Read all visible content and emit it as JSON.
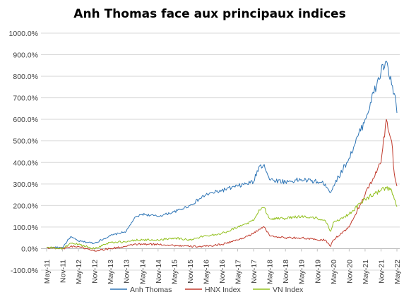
{
  "chart_data": {
    "type": "line",
    "title": "Anh Thomas face aux principaux indices",
    "xlabel": "",
    "ylabel": "",
    "ylim": [
      -100,
      1000
    ],
    "yticks": [
      "1000.0%",
      "900.0%",
      "800.0%",
      "700.0%",
      "600.0%",
      "500.0%",
      "400.0%",
      "300.0%",
      "200.0%",
      "100.0%",
      "0.0%",
      "-100.0%"
    ],
    "ytick_values": [
      1000,
      900,
      800,
      700,
      600,
      500,
      400,
      300,
      200,
      100,
      0,
      -100
    ],
    "xticks": [
      "May-11",
      "Nov-11",
      "May-12",
      "Nov-12",
      "May-13",
      "Nov-13",
      "May-14",
      "Nov-14",
      "May-15",
      "Nov-15",
      "May-16",
      "Nov-16",
      "May-17",
      "Nov-17",
      "May-18",
      "Nov-18",
      "May-19",
      "Nov-19",
      "May-20",
      "Nov-20",
      "May-21",
      "Nov-21",
      "May-22"
    ],
    "x": [
      "May-11",
      "Nov-11",
      "Feb-12",
      "May-12",
      "Nov-12",
      "May-13",
      "Nov-13",
      "Feb-14",
      "May-14",
      "Nov-14",
      "May-15",
      "Nov-15",
      "May-16",
      "Nov-16",
      "May-17",
      "Nov-17",
      "Jan-18",
      "Mar-18",
      "May-18",
      "Nov-18",
      "May-19",
      "Nov-19",
      "Feb-20",
      "Apr-20",
      "May-20",
      "Nov-20",
      "May-21",
      "Nov-21",
      "Jan-22",
      "Mar-22",
      "Apr-22",
      "May-22"
    ],
    "grid": true,
    "legend_position": "bottom",
    "series": [
      {
        "name": "Anh Thomas",
        "color": "#2e75b6",
        "values": [
          5,
          5,
          55,
          35,
          25,
          60,
          80,
          140,
          160,
          150,
          170,
          200,
          250,
          270,
          290,
          310,
          380,
          390,
          320,
          310,
          320,
          310,
          300,
          260,
          290,
          420,
          600,
          820,
          870,
          760,
          720,
          630
        ]
      },
      {
        "name": "HNX Index",
        "color": "#c0392b",
        "values": [
          5,
          0,
          10,
          10,
          -10,
          0,
          10,
          20,
          20,
          20,
          15,
          10,
          10,
          20,
          40,
          70,
          90,
          100,
          60,
          50,
          50,
          40,
          40,
          10,
          40,
          100,
          250,
          400,
          600,
          500,
          350,
          290
        ]
      },
      {
        "name": "VN Index",
        "color": "#92c01e",
        "values": [
          5,
          0,
          25,
          20,
          0,
          30,
          30,
          40,
          40,
          40,
          50,
          40,
          60,
          70,
          100,
          130,
          180,
          190,
          140,
          140,
          150,
          140,
          130,
          80,
          120,
          160,
          230,
          270,
          280,
          270,
          230,
          195
        ]
      }
    ]
  }
}
